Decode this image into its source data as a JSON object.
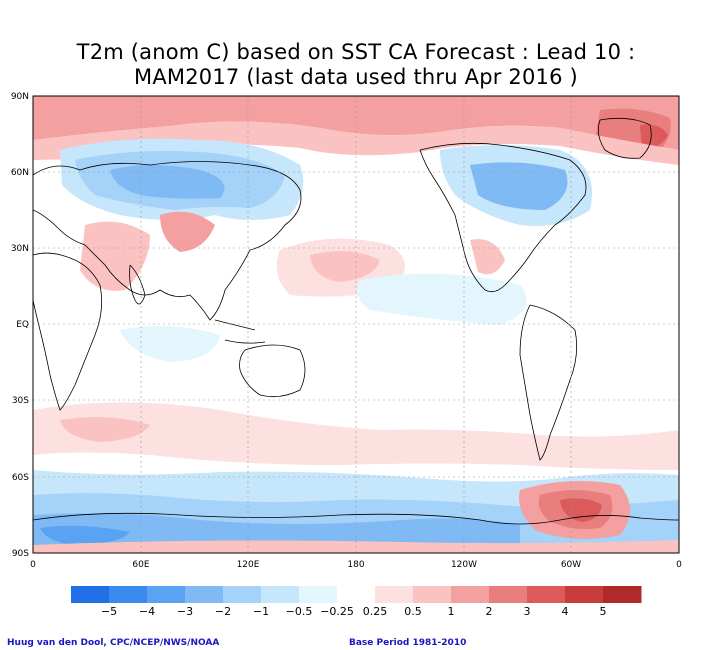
{
  "title_line1": "T2m (anom C) based on SST CA Forecast : Lead 10 :",
  "title_line2": "MAM2017 (last data used thru Apr 2016 )",
  "lat_labels": [
    "90N",
    "60N",
    "30N",
    "EQ",
    "30S",
    "60S",
    "90S"
  ],
  "lon_labels": [
    "0",
    "60E",
    "120E",
    "180",
    "120W",
    "60W",
    "0"
  ],
  "colorbar": {
    "labels": [
      "−5",
      "−4",
      "−3",
      "−2",
      "−1",
      "−0.5",
      "−0.25",
      "0.25",
      "0.5",
      "1",
      "2",
      "3",
      "4",
      "5"
    ],
    "colors": [
      "#1f6fe8",
      "#3a8af0",
      "#5aa2f2",
      "#7fbaf5",
      "#a4d2f8",
      "#c6e6fb",
      "#e3f6fd",
      "#ffffff",
      "#fde0e0",
      "#fbc2c2",
      "#f4a0a0",
      "#e87e7e",
      "#dc5a5a",
      "#c83c3c",
      "#b02a2a"
    ]
  },
  "credit_left": "Huug van den Dool, CPC/NCEP/NWS/NOAA",
  "credit_right": "Base Period 1981-2010"
}
